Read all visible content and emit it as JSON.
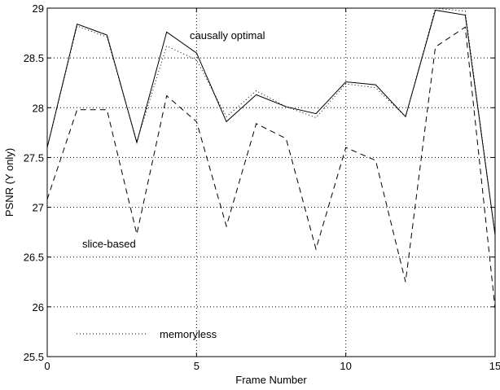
{
  "chart_data": {
    "type": "line",
    "title": "",
    "xlabel": "Frame Number",
    "ylabel": "PSNR (Y only)",
    "xlim": [
      0,
      15
    ],
    "ylim": [
      25.5,
      29
    ],
    "xticks": [
      0,
      5,
      10,
      15
    ],
    "yticks": [
      25.5,
      26,
      26.5,
      27,
      27.5,
      28,
      28.5,
      29
    ],
    "grid": true,
    "x": [
      0,
      1,
      2,
      3,
      4,
      5,
      6,
      7,
      8,
      9,
      10,
      11,
      12,
      13,
      14,
      15
    ],
    "series": [
      {
        "name": "causally optimal",
        "style": "solid",
        "values": [
          27.6,
          28.84,
          28.73,
          27.65,
          28.76,
          28.55,
          27.86,
          28.13,
          28.01,
          27.94,
          28.26,
          28.23,
          27.91,
          28.98,
          28.93,
          26.72
        ]
      },
      {
        "name": "memoryless",
        "style": "dotted",
        "values": [
          27.6,
          28.82,
          28.71,
          27.66,
          28.62,
          28.48,
          27.91,
          28.17,
          28.01,
          27.9,
          28.24,
          28.2,
          27.91,
          29.0,
          28.97,
          26.72
        ]
      },
      {
        "name": "slice-based",
        "style": "dashed",
        "values": [
          27.08,
          27.98,
          27.98,
          26.73,
          28.12,
          27.86,
          26.81,
          27.84,
          27.69,
          26.58,
          27.6,
          27.47,
          26.25,
          28.61,
          28.81,
          25.98
        ]
      }
    ],
    "annotations": [
      {
        "text": "causally optimal",
        "series": "causally optimal"
      },
      {
        "text": "slice-based",
        "series": "slice-based"
      },
      {
        "text": "memoryless",
        "series": "memoryless",
        "legend_line": true
      }
    ],
    "colors": {
      "line": "#000000",
      "grid": "#000000",
      "background": "#ffffff"
    }
  }
}
